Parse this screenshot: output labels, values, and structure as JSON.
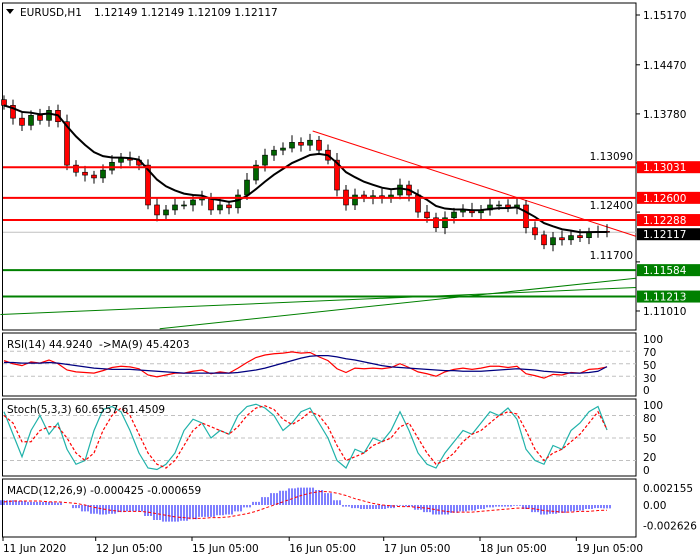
{
  "header": {
    "symbol": "EURUSD,H1",
    "ohlc": "1.12149 1.12149 1.12109 1.12117",
    "dropdown_icon": "triangle-down-icon"
  },
  "colors": {
    "bull": "#006400",
    "bear": "#ff0000",
    "ma": "#000000",
    "resistance": "#ff0000",
    "support": "#008000",
    "current_price_bg": "#000000",
    "rsi": "#ff0000",
    "rsi_ma": "#000080",
    "stoch_main": "#20b2aa",
    "stoch_signal": "#ff0000",
    "macd_hist": "#0000ff",
    "macd_signal": "#ff0000",
    "grid_dash": "#c0c0c0"
  },
  "chart_data": [
    {
      "type": "candlestick",
      "panel": "main",
      "price_axis_ticks": [
        "1.15170",
        "1.14470",
        "1.13780",
        "1.13090",
        "1.12400",
        "1.11700",
        "1.11010"
      ],
      "price_axis_values": [
        1.1517,
        1.1447,
        1.1378,
        1.1309,
        1.124,
        1.117,
        1.1101
      ],
      "ylim": [
        1.1083,
        1.1538
      ],
      "closes": [
        1.139,
        1.1372,
        1.1362,
        1.1376,
        1.1369,
        1.1383,
        1.1367,
        1.1306,
        1.1296,
        1.1292,
        1.1288,
        1.1299,
        1.131,
        1.1316,
        1.1313,
        1.1306,
        1.125,
        1.1236,
        1.1243,
        1.125,
        1.125,
        1.1257,
        1.126,
        1.1243,
        1.125,
        1.1246,
        1.1264,
        1.1285,
        1.1306,
        1.132,
        1.1327,
        1.133,
        1.1338,
        1.1334,
        1.1341,
        1.1327,
        1.1313,
        1.1271,
        1.125,
        1.1264,
        1.126,
        1.1263,
        1.126,
        1.1264,
        1.1278,
        1.1264,
        1.124,
        1.1232,
        1.1218,
        1.1232,
        1.124,
        1.1243,
        1.1239,
        1.1243,
        1.125,
        1.125,
        1.1246,
        1.125,
        1.1218,
        1.1208,
        1.1194,
        1.1204,
        1.1201,
        1.1207,
        1.1204,
        1.1212,
        1.1213,
        1.12117
      ],
      "horizontal_levels": [
        {
          "price": 1.13031,
          "label": "1.13031",
          "kind": "resistance"
        },
        {
          "price": 1.126,
          "label": "1.12600",
          "kind": "resistance"
        },
        {
          "price": 1.12288,
          "label": "1.12288",
          "kind": "resistance"
        },
        {
          "price": 1.11584,
          "label": "1.11584",
          "kind": "support"
        },
        {
          "price": 1.11213,
          "label": "1.11213",
          "kind": "support"
        }
      ],
      "current_price": {
        "price": 1.12117,
        "label": "1.12117"
      },
      "trendlines": [
        {
          "kind": "resistance",
          "from": [
            34.3,
            1.1354
          ],
          "to": [
            70.2,
            1.1206
          ]
        },
        {
          "kind": "support",
          "from": [
            -0.4,
            1.1096
          ],
          "to": [
            70.2,
            1.1134
          ]
        },
        {
          "kind": "support",
          "from": [
            17.3,
            1.1076
          ],
          "to": [
            70.2,
            1.1147
          ]
        }
      ]
    },
    {
      "type": "line",
      "panel": "rsi",
      "title": "RSI(14) 44.9240  ->MA(9) 45.4203",
      "ticks": [
        "100",
        "70",
        "50",
        "30",
        "0"
      ],
      "levels": [
        70,
        50,
        30
      ],
      "ylim": [
        0,
        100
      ],
      "series": [
        {
          "values": [
            55,
            50,
            47,
            53,
            51,
            56,
            50,
            40,
            37,
            36,
            35,
            39,
            44,
            46,
            45,
            42,
            32,
            29,
            32,
            35,
            35,
            38,
            40,
            34,
            37,
            35,
            43,
            52,
            60,
            64,
            66,
            67,
            69,
            67,
            68,
            61,
            55,
            42,
            36,
            43,
            42,
            43,
            42,
            44,
            50,
            44,
            37,
            34,
            30,
            37,
            41,
            43,
            41,
            43,
            46,
            46,
            44,
            46,
            34,
            31,
            27,
            33,
            32,
            36,
            35,
            41,
            42,
            44.924
          ]
        },
        {
          "values": [
            52,
            52,
            51,
            51,
            51,
            52,
            51,
            49,
            47,
            45,
            43,
            42,
            41,
            41,
            41,
            40,
            39,
            38,
            37,
            36,
            35,
            35,
            35,
            35,
            35,
            35,
            36,
            38,
            40,
            43,
            47,
            51,
            55,
            59,
            62,
            63,
            63,
            61,
            58,
            56,
            53,
            50,
            47,
            45,
            44,
            43,
            42,
            41,
            40,
            39,
            39,
            38,
            38,
            38,
            39,
            40,
            41,
            42,
            41,
            40,
            38,
            37,
            36,
            35,
            35,
            36,
            38,
            45.4203
          ]
        }
      ]
    },
    {
      "type": "line",
      "panel": "stochastic",
      "title": "Stoch(5,3,3) 60.6557 61.4509",
      "ticks": [
        "100",
        "80",
        "50",
        "20",
        "0"
      ],
      "levels": [
        80,
        50,
        20
      ],
      "ylim": [
        0,
        100
      ],
      "series": [
        {
          "values": [
            85,
            55,
            25,
            60,
            80,
            55,
            70,
            35,
            15,
            20,
            60,
            88,
            92,
            85,
            60,
            30,
            10,
            8,
            15,
            30,
            60,
            75,
            70,
            50,
            60,
            55,
            80,
            92,
            95,
            90,
            80,
            60,
            70,
            85,
            90,
            70,
            50,
            20,
            10,
            35,
            30,
            50,
            45,
            60,
            85,
            60,
            30,
            15,
            10,
            30,
            45,
            60,
            55,
            70,
            85,
            80,
            90,
            75,
            35,
            20,
            15,
            40,
            35,
            60,
            70,
            85,
            92,
            60.6557
          ]
        },
        {
          "values": [
            80,
            70,
            45,
            45,
            60,
            65,
            65,
            50,
            30,
            20,
            30,
            60,
            80,
            90,
            80,
            55,
            30,
            15,
            10,
            20,
            40,
            60,
            70,
            65,
            60,
            55,
            65,
            80,
            90,
            93,
            88,
            75,
            68,
            75,
            85,
            80,
            65,
            40,
            20,
            25,
            30,
            40,
            45,
            50,
            65,
            70,
            50,
            30,
            15,
            20,
            30,
            45,
            55,
            60,
            70,
            80,
            85,
            82,
            60,
            35,
            20,
            30,
            35,
            45,
            55,
            70,
            85,
            61.4509
          ]
        }
      ]
    },
    {
      "type": "bar",
      "panel": "macd",
      "title": "MACD(12,26,9) -0.000425 -0.000659",
      "ticks": [
        "0.002155",
        "0.00",
        "-0.002626"
      ],
      "ylim": [
        -0.003,
        0.0028
      ],
      "histogram": [
        0.0006,
        0.0006,
        0.0005,
        0.0004,
        0.0004,
        0.0004,
        0.0003,
        0.0,
        -0.0004,
        -0.0008,
        -0.0011,
        -0.0012,
        -0.0011,
        -0.0009,
        -0.0008,
        -0.0008,
        -0.0014,
        -0.0019,
        -0.0021,
        -0.0021,
        -0.002,
        -0.0018,
        -0.0015,
        -0.0015,
        -0.0013,
        -0.0012,
        -0.0008,
        -0.0003,
        0.0004,
        0.001,
        0.0015,
        0.0018,
        0.0021,
        0.0022,
        0.0022,
        0.0019,
        0.0015,
        0.0006,
        -0.0002,
        -0.0004,
        -0.0005,
        -0.0005,
        -0.0005,
        -0.0004,
        -0.0001,
        -0.0002,
        -0.0006,
        -0.0009,
        -0.0012,
        -0.0012,
        -0.001,
        -0.0008,
        -0.0007,
        -0.0005,
        -0.0003,
        -0.0002,
        -0.0002,
        -0.0001,
        -0.0005,
        -0.0009,
        -0.0012,
        -0.0011,
        -0.001,
        -0.0008,
        -0.0007,
        -0.0005,
        -0.0004,
        -0.000425
      ],
      "signal": [
        0.0004,
        0.0005,
        0.0005,
        0.0005,
        0.0005,
        0.0004,
        0.0004,
        0.0003,
        0.0002,
        0.0,
        -0.0003,
        -0.0005,
        -0.0007,
        -0.0008,
        -0.0008,
        -0.0008,
        -0.0009,
        -0.0011,
        -0.0013,
        -0.0015,
        -0.0016,
        -0.0017,
        -0.0017,
        -0.0016,
        -0.0016,
        -0.0015,
        -0.0013,
        -0.0011,
        -0.0008,
        -0.0004,
        0.0,
        0.0004,
        0.0008,
        0.0012,
        0.0015,
        0.0017,
        0.0017,
        0.0015,
        0.0012,
        0.0008,
        0.0005,
        0.0002,
        0.0,
        -0.0001,
        -0.0002,
        -0.0002,
        -0.0003,
        -0.0004,
        -0.0006,
        -0.0008,
        -0.0009,
        -0.0009,
        -0.0009,
        -0.0008,
        -0.0007,
        -0.0006,
        -0.0005,
        -0.0004,
        -0.0004,
        -0.0005,
        -0.0007,
        -0.0008,
        -0.0009,
        -0.0009,
        -0.0008,
        -0.0008,
        -0.0007,
        -0.000659
      ]
    }
  ],
  "time_axis": [
    {
      "label": "11 Jun 2020",
      "bar": 0
    },
    {
      "label": "12 Jun 05:00",
      "bar": 10.3
    },
    {
      "label": "15 Jun 05:00",
      "bar": 21
    },
    {
      "label": "16 Jun 05:00",
      "bar": 31.8
    },
    {
      "label": "17 Jun 05:00",
      "bar": 42.3
    },
    {
      "label": "18 Jun 05:00",
      "bar": 53
    },
    {
      "label": "19 Jun 05:00",
      "bar": 63.7
    }
  ]
}
